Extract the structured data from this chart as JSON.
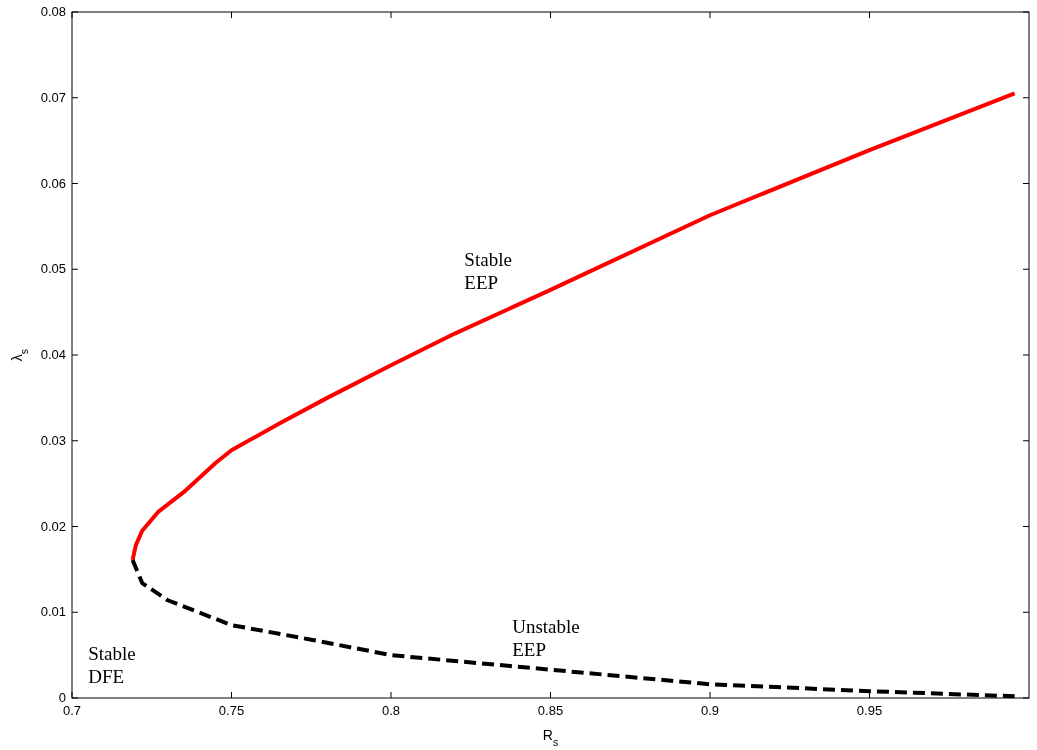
{
  "chart_data": {
    "type": "line",
    "xlabel": "R$_{s}$",
    "ylabel": "λ$_{s}$",
    "xlim": [
      0.7,
      1.0
    ],
    "xticks": [
      0.7,
      0.75,
      0.8,
      0.85,
      0.9,
      0.95
    ],
    "ylim": [
      0,
      0.08
    ],
    "yticks": [
      0,
      0.01,
      0.02,
      0.03,
      0.04,
      0.05,
      0.06,
      0.07,
      0.08
    ],
    "grid": false,
    "series": [
      {
        "color": "#ff0000",
        "line_style": "solid",
        "x": [
          0.719,
          0.72,
          0.722,
          0.727,
          0.735,
          0.745,
          0.75,
          0.765,
          0.78,
          0.8,
          0.82,
          0.85,
          0.9,
          0.95,
          0.9955
        ],
        "values": [
          0.0161,
          0.0178,
          0.0195,
          0.0217,
          0.024,
          0.0274,
          0.0289,
          0.032,
          0.035,
          0.0388,
          0.0425,
          0.0476,
          0.0563,
          0.0639,
          0.0705
        ]
      },
      {
        "color": "#000000",
        "line_style": "dashed",
        "x": [
          0.719,
          0.722,
          0.73,
          0.75,
          0.775,
          0.8,
          0.85,
          0.9,
          0.95,
          0.9955
        ],
        "values": [
          0.0161,
          0.0134,
          0.0114,
          0.0085,
          0.0068,
          0.005,
          0.0033,
          0.0016,
          0.0008,
          0.0002
        ]
      }
    ],
    "annotations": [
      "Stable\nEEP",
      "Unstable\nEEP",
      "Stable\nDFE"
    ]
  }
}
